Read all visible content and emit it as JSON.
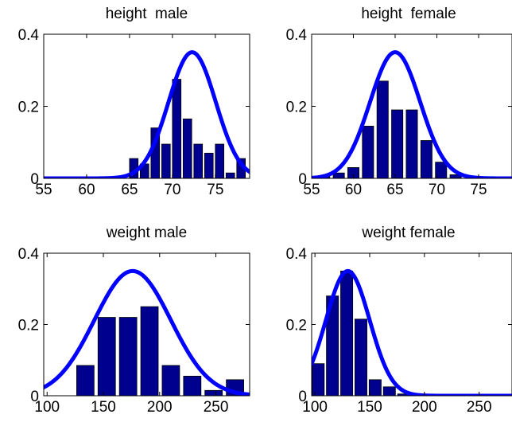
{
  "chart_data": [
    {
      "type": "bar",
      "title": "height  male",
      "xlabel": "",
      "ylabel": "",
      "xlim": [
        55,
        79
      ],
      "ylim": [
        0,
        0.4
      ],
      "x_ticks": [
        55,
        60,
        65,
        70,
        75
      ],
      "x_tick_labels": [
        "55",
        "60",
        "65",
        "70",
        "75"
      ],
      "y_ticks": [
        0,
        0.2,
        0.4
      ],
      "y_tick_labels": [
        "0",
        "0.2",
        "0.4"
      ],
      "bars": {
        "x": [
          65.5,
          66.75,
          68.0,
          69.25,
          70.5,
          71.75,
          73.0,
          74.25,
          75.5,
          76.75,
          78.0
        ],
        "values": [
          0.055,
          0.04,
          0.14,
          0.095,
          0.275,
          0.165,
          0.095,
          0.07,
          0.095,
          0.015,
          0.055
        ],
        "color": "#00008f"
      },
      "curve": {
        "type": "gaussian",
        "mean": 72.3,
        "peak": 0.35,
        "sd": 2.75,
        "color": "#0000ff"
      }
    },
    {
      "type": "bar",
      "title": "height  female",
      "xlabel": "",
      "ylabel": "",
      "xlim": [
        55,
        79
      ],
      "ylim": [
        0,
        0.4
      ],
      "x_ticks": [
        55,
        60,
        65,
        70,
        75
      ],
      "x_tick_labels": [
        "55",
        "60",
        "65",
        "70",
        "75"
      ],
      "y_ticks": [
        0,
        0.2,
        0.4
      ],
      "y_tick_labels": [
        "0",
        "0.2",
        "0.4"
      ],
      "bars": {
        "x": [
          56.5,
          58.25,
          60.0,
          61.75,
          63.5,
          65.25,
          67.0,
          68.75,
          70.5,
          72.25
        ],
        "values": [
          0.005,
          0.015,
          0.03,
          0.145,
          0.27,
          0.19,
          0.19,
          0.105,
          0.045,
          0.01
        ],
        "color": "#00008f"
      },
      "curve": {
        "type": "gaussian",
        "mean": 65.0,
        "peak": 0.35,
        "sd": 3.0,
        "color": "#0000ff"
      }
    },
    {
      "type": "bar",
      "title": "weight male",
      "xlabel": "",
      "ylabel": "",
      "xlim": [
        97,
        280
      ],
      "ylim": [
        0,
        0.4
      ],
      "x_ticks": [
        100,
        150,
        200,
        250
      ],
      "x_tick_labels": [
        "100",
        "150",
        "200",
        "250"
      ],
      "y_ticks": [
        0,
        0.2,
        0.4
      ],
      "y_tick_labels": [
        "0",
        "0.2",
        "0.4"
      ],
      "bars": {
        "x": [
          134,
          153,
          172,
          191,
          210,
          229,
          248,
          267
        ],
        "values": [
          0.085,
          0.22,
          0.22,
          0.25,
          0.085,
          0.055,
          0.015,
          0.045
        ],
        "color": "#00008f"
      },
      "curve": {
        "type": "gaussian",
        "mean": 176,
        "peak": 0.35,
        "sd": 34,
        "color": "#0000ff"
      }
    },
    {
      "type": "bar",
      "title": "weight female",
      "xlabel": "",
      "ylabel": "",
      "xlim": [
        97,
        280
      ],
      "ylim": [
        0,
        0.4
      ],
      "x_ticks": [
        100,
        150,
        200,
        250
      ],
      "x_tick_labels": [
        "100",
        "150",
        "200",
        "250"
      ],
      "y_ticks": [
        0,
        0.2,
        0.4
      ],
      "y_tick_labels": [
        "0",
        "0.2",
        "0.4"
      ],
      "bars": {
        "x": [
          103,
          116,
          129,
          142,
          155,
          168,
          181,
          194
        ],
        "values": [
          0.09,
          0.28,
          0.35,
          0.215,
          0.045,
          0.025,
          0.005,
          0.002
        ],
        "color": "#00008f"
      },
      "curve": {
        "type": "gaussian",
        "mean": 130,
        "peak": 0.35,
        "sd": 20,
        "color": "#0000ff"
      }
    }
  ]
}
